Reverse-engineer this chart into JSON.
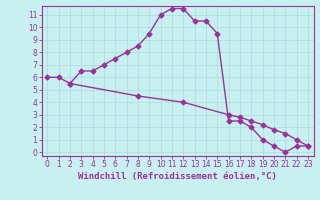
{
  "line1_x": [
    0,
    1,
    2,
    3,
    4,
    5,
    6,
    7,
    8,
    9,
    10,
    11,
    12,
    13,
    14,
    15,
    16,
    17,
    18,
    19,
    20,
    21,
    22,
    23
  ],
  "line1_y": [
    6.0,
    6.0,
    5.5,
    6.5,
    6.5,
    7.0,
    7.5,
    8.0,
    8.5,
    9.5,
    11.0,
    11.5,
    11.5,
    10.5,
    10.5,
    9.5,
    2.5,
    2.5,
    2.0,
    1.0,
    0.5,
    0.0,
    0.5,
    0.5
  ],
  "line2_x": [
    2,
    8,
    12,
    16,
    17,
    18,
    19,
    20,
    21,
    22,
    23
  ],
  "line2_y": [
    5.5,
    4.5,
    4.0,
    3.0,
    2.8,
    2.5,
    2.2,
    1.8,
    1.5,
    1.0,
    0.5
  ],
  "color": "#993399",
  "bg_color": "#c8f0f0",
  "grid_color": "#aadddd",
  "xlabel": "Windchill (Refroidissement éolien,°C)",
  "xlim": [
    0,
    23
  ],
  "ylim": [
    0,
    12
  ],
  "xticks": [
    0,
    1,
    2,
    3,
    4,
    5,
    6,
    7,
    8,
    9,
    10,
    11,
    12,
    13,
    14,
    15,
    16,
    17,
    18,
    19,
    20,
    21,
    22,
    23
  ],
  "yticks": [
    0,
    1,
    2,
    3,
    4,
    5,
    6,
    7,
    8,
    9,
    10,
    11
  ],
  "marker": "D",
  "linewidth": 1.0,
  "markersize": 2.5,
  "xlabel_fontsize": 6.5,
  "tick_fontsize": 5.5
}
